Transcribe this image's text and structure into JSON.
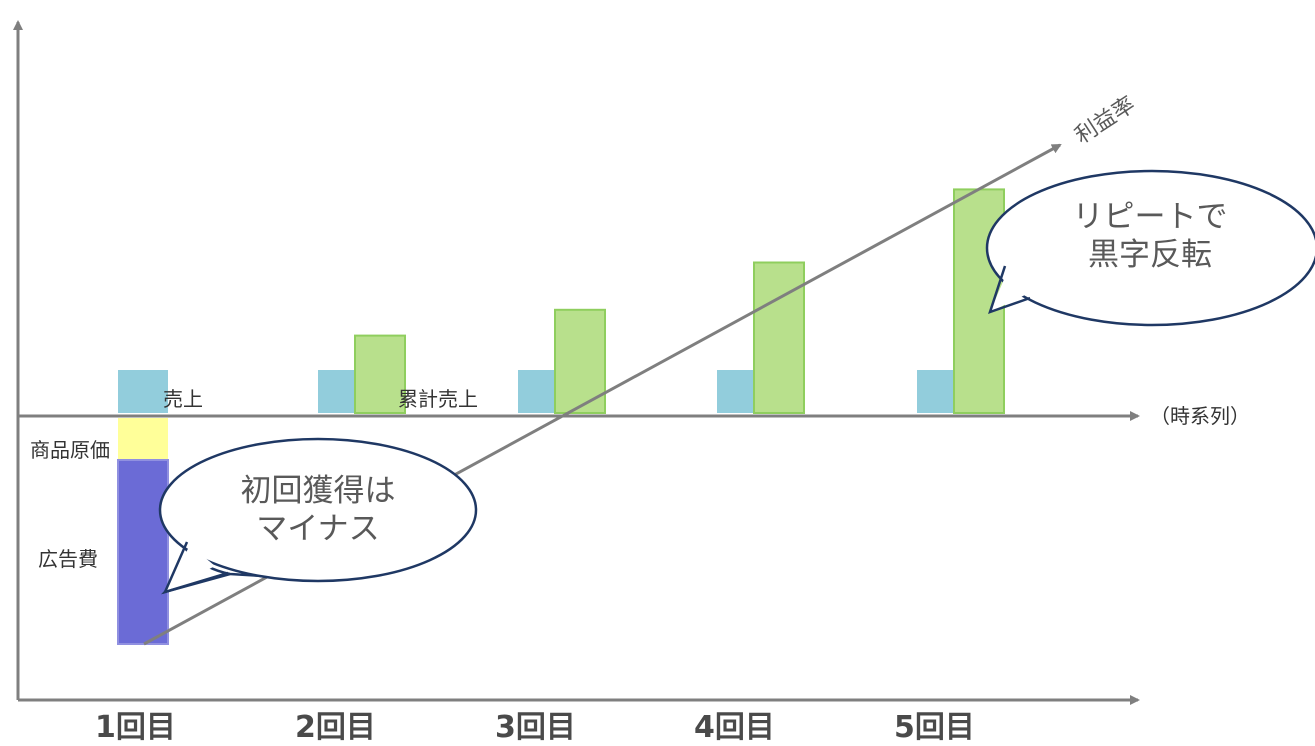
{
  "colors": {
    "axis": "#7f7f7f",
    "sales_bar": "#92cddc",
    "cumulative_bar": "#b8e08c",
    "cumulative_border": "#8fce5e",
    "cost_of_goods": "#ffff99",
    "ad_cost": "#6b6bd6",
    "bubble_border": "#1f3864"
  },
  "axis": {
    "time_label": "（時系列）"
  },
  "labels": {
    "sales": "売上",
    "cumulative_sales": "累計売上",
    "cost_of_goods": "商品原価",
    "ad_cost": "広告費",
    "profit_rate": "利益率"
  },
  "bubbles": {
    "first": {
      "line1": "初回獲得は",
      "line2": "マイナス"
    },
    "repeat": {
      "line1": "リピートで",
      "line2": "黒字反転"
    }
  },
  "chart_data": {
    "type": "bar",
    "categories": [
      "1回目",
      "2回目",
      "3回目",
      "4回目",
      "5回目"
    ],
    "series": [
      {
        "name": "売上",
        "values": [
          1,
          1,
          1,
          1,
          1
        ]
      },
      {
        "name": "累計売上",
        "values": [
          0,
          1.8,
          2.4,
          3.5,
          5.2
        ]
      }
    ],
    "costs": {
      "商品原価": 1,
      "広告費": 4.2
    }
  }
}
